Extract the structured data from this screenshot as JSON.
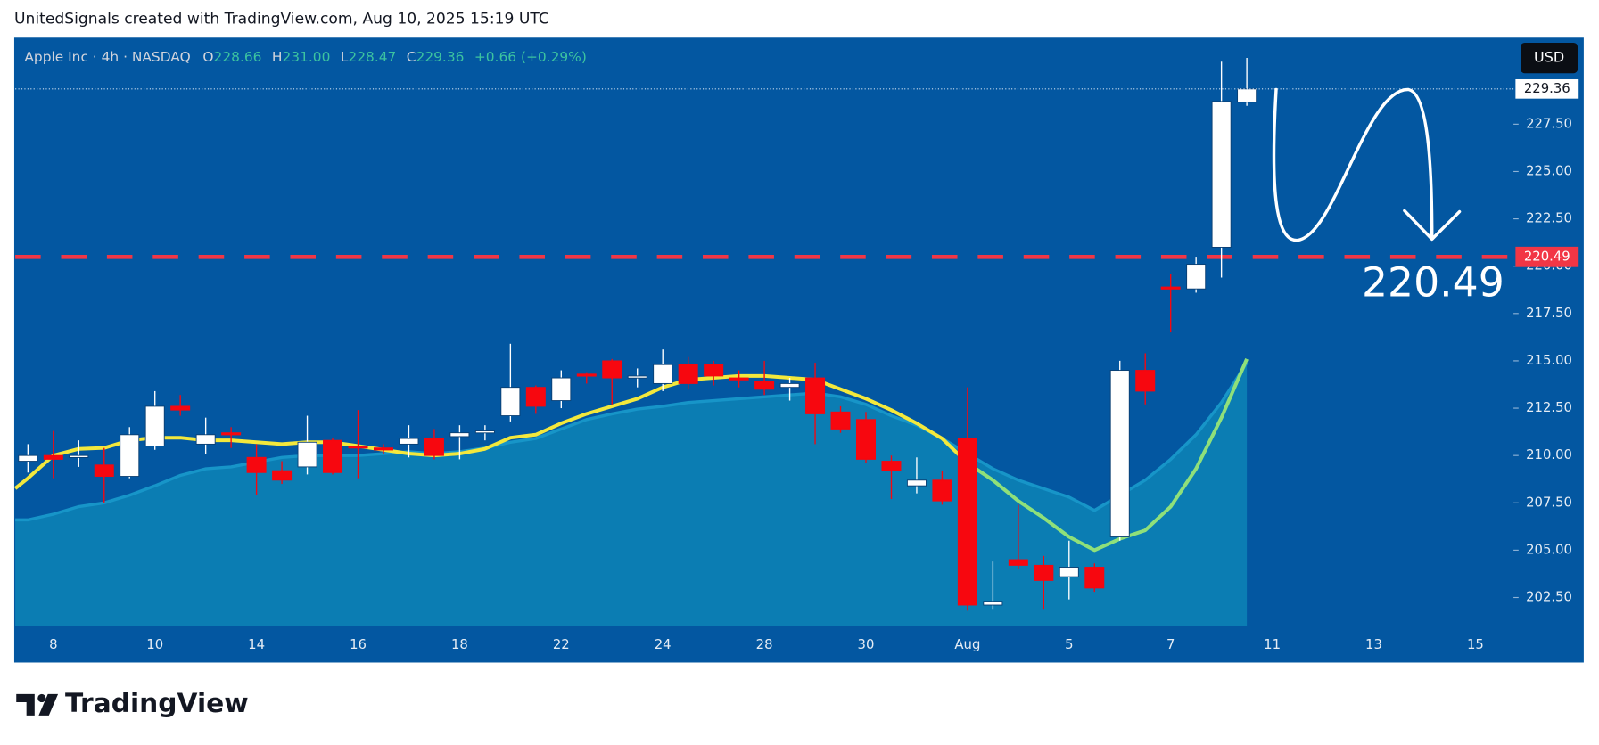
{
  "chart_data": {
    "type": "candlestick",
    "caption": "UnitedSignals created with TradingView.com, Aug 10, 2025 15:19 UTC",
    "brand": "TradingView",
    "currency": "USD",
    "legend": {
      "symbol": "Apple Inc · 4h · NASDAQ",
      "letters": [
        "O",
        "H",
        "L",
        "C"
      ],
      "values": [
        "228.66",
        "231.00",
        "228.47",
        "229.36"
      ],
      "change": "+0.66 (+0.29%)"
    },
    "categories": [
      null,
      "8",
      null,
      null,
      null,
      "10",
      null,
      null,
      null,
      "14",
      null,
      null,
      null,
      "16",
      null,
      null,
      null,
      "18",
      null,
      null,
      null,
      "22",
      null,
      null,
      null,
      "24",
      null,
      null,
      null,
      "28",
      null,
      null,
      null,
      "30",
      null,
      null,
      null,
      "Aug",
      null,
      null,
      null,
      "5",
      null,
      null,
      null,
      "7",
      null,
      null,
      null,
      "11",
      null,
      null,
      null,
      "13",
      null,
      null,
      null,
      "15",
      null
    ],
    "open": [
      209.7,
      210.0,
      209.9,
      209.5,
      208.9,
      210.5,
      212.6,
      210.6,
      211.2,
      209.9,
      209.2,
      209.4,
      210.8,
      210.5,
      210.4,
      210.6,
      210.9,
      211.0,
      211.2,
      212.1,
      213.6,
      212.9,
      214.3,
      215.0,
      214.1,
      213.8,
      214.8,
      214.8,
      214.1,
      213.9,
      213.6,
      214.1,
      212.3,
      211.9,
      209.7,
      208.4,
      208.7,
      210.9,
      202.1,
      204.5,
      204.2,
      203.6,
      204.1,
      205.7,
      214.5,
      218.9,
      218.8,
      221.0,
      228.66,
      null,
      null,
      null,
      null,
      null,
      null,
      null,
      null,
      null,
      null
    ],
    "high": [
      210.6,
      211.3,
      210.8,
      210.4,
      211.5,
      213.4,
      213.2,
      212.0,
      211.5,
      210.6,
      209.7,
      212.1,
      210.9,
      212.4,
      210.6,
      211.6,
      211.4,
      211.6,
      211.6,
      215.9,
      213.7,
      214.5,
      214.4,
      215.1,
      214.6,
      215.6,
      215.2,
      215.0,
      214.5,
      215.0,
      214.1,
      214.9,
      212.6,
      212.3,
      210.0,
      209.9,
      209.2,
      213.6,
      204.4,
      207.4,
      204.7,
      205.5,
      204.3,
      215.0,
      215.4,
      219.6,
      220.5,
      230.8,
      231.0,
      null,
      null,
      null,
      null,
      null,
      null,
      null,
      null,
      null,
      null
    ],
    "low": [
      209.1,
      208.8,
      209.4,
      207.5,
      208.8,
      210.3,
      212.1,
      210.1,
      210.4,
      207.9,
      208.5,
      209.0,
      209.0,
      208.8,
      210.1,
      209.9,
      209.8,
      209.8,
      210.8,
      211.8,
      212.2,
      212.5,
      213.8,
      212.7,
      213.6,
      213.4,
      213.5,
      213.7,
      213.6,
      213.2,
      212.9,
      210.6,
      211.2,
      209.6,
      207.7,
      208.0,
      207.4,
      201.8,
      201.9,
      204.0,
      201.9,
      202.4,
      202.8,
      205.5,
      212.7,
      216.5,
      218.6,
      219.4,
      228.47,
      null,
      null,
      null,
      null,
      null,
      null,
      null,
      null,
      null,
      null
    ],
    "close": [
      210.0,
      209.8,
      210.0,
      208.9,
      211.1,
      212.6,
      212.4,
      211.1,
      211.1,
      209.1,
      208.7,
      210.7,
      209.1,
      210.4,
      210.3,
      210.9,
      210.0,
      211.2,
      211.3,
      213.6,
      212.6,
      214.1,
      214.2,
      214.1,
      214.2,
      214.8,
      213.8,
      214.2,
      214.0,
      213.5,
      213.8,
      212.2,
      211.4,
      209.8,
      209.2,
      208.7,
      207.6,
      202.1,
      202.3,
      204.2,
      203.4,
      204.1,
      203.0,
      214.5,
      213.4,
      218.8,
      220.1,
      228.7,
      229.36,
      null,
      null,
      null,
      null,
      null,
      null,
      null,
      null,
      null,
      null
    ],
    "up_color": "#ffffff",
    "down_color": "#f7070f",
    "overlays": [
      {
        "kind": "area",
        "color": "#1795c8",
        "fill": "#0b7db3",
        "values": [
          206.6,
          206.9,
          207.3,
          207.5,
          207.9,
          208.4,
          208.95,
          209.3,
          209.4,
          209.65,
          209.9,
          210.0,
          210.0,
          210.0,
          210.1,
          210.2,
          210.1,
          210.2,
          210.4,
          210.7,
          210.9,
          211.4,
          211.9,
          212.2,
          212.45,
          212.6,
          212.8,
          212.9,
          213.0,
          213.1,
          213.2,
          213.3,
          213.1,
          212.7,
          212.1,
          211.6,
          210.9,
          210.1,
          209.3,
          208.7,
          208.25,
          207.8,
          207.1,
          207.9,
          208.7,
          209.8,
          211.1,
          212.8,
          214.9,
          null,
          null,
          null,
          null,
          null,
          null,
          null,
          null,
          null,
          null
        ]
      },
      {
        "kind": "line",
        "color": "#f3e83c",
        "values": [
          208.8,
          210.0,
          210.35,
          210.4,
          210.8,
          210.94,
          210.94,
          210.8,
          210.8,
          210.7,
          210.6,
          210.7,
          210.7,
          210.5,
          210.3,
          210.1,
          210.0,
          210.1,
          210.35,
          210.94,
          211.1,
          211.7,
          212.2,
          212.6,
          213.0,
          213.6,
          214.0,
          214.1,
          214.2,
          214.2,
          214.1,
          214.0,
          213.5,
          213.0,
          212.4,
          211.7,
          210.9,
          209.6,
          null,
          null,
          null,
          null,
          null,
          null,
          null,
          null,
          null,
          null,
          null,
          null,
          null,
          null,
          null,
          null,
          null,
          null,
          null,
          null,
          null
        ]
      },
      {
        "kind": "line",
        "color": "#8fe07a",
        "values": [
          null,
          null,
          null,
          null,
          null,
          null,
          null,
          null,
          null,
          null,
          null,
          null,
          null,
          null,
          null,
          null,
          null,
          null,
          null,
          null,
          null,
          null,
          null,
          null,
          null,
          null,
          null,
          null,
          null,
          null,
          null,
          null,
          null,
          null,
          null,
          null,
          null,
          209.6,
          208.7,
          207.6,
          206.7,
          205.7,
          205.0,
          205.6,
          206.05,
          207.3,
          209.3,
          212.0,
          215.1,
          null,
          null,
          null,
          null,
          null,
          null,
          null,
          null,
          null,
          null
        ]
      }
    ],
    "ylim": [
      201.0,
      232.07
    ],
    "yticks": [
      {
        "value": 202.5,
        "label": "202.50"
      },
      {
        "value": 205,
        "label": "205.00"
      },
      {
        "value": 207.5,
        "label": "207.50"
      },
      {
        "value": 210,
        "label": "210.00"
      },
      {
        "value": 212.5,
        "label": "212.50"
      },
      {
        "value": 215,
        "label": "215.00"
      },
      {
        "value": 217.5,
        "label": "217.50"
      },
      {
        "value": 220,
        "label": "220.00"
      },
      {
        "value": 222.5,
        "label": "222.50"
      },
      {
        "value": 225,
        "label": "225.00"
      },
      {
        "value": 227.5,
        "label": "227.50"
      }
    ],
    "level": {
      "value": 220.49,
      "color": "#f23645"
    },
    "annotation": "220.49"
  }
}
